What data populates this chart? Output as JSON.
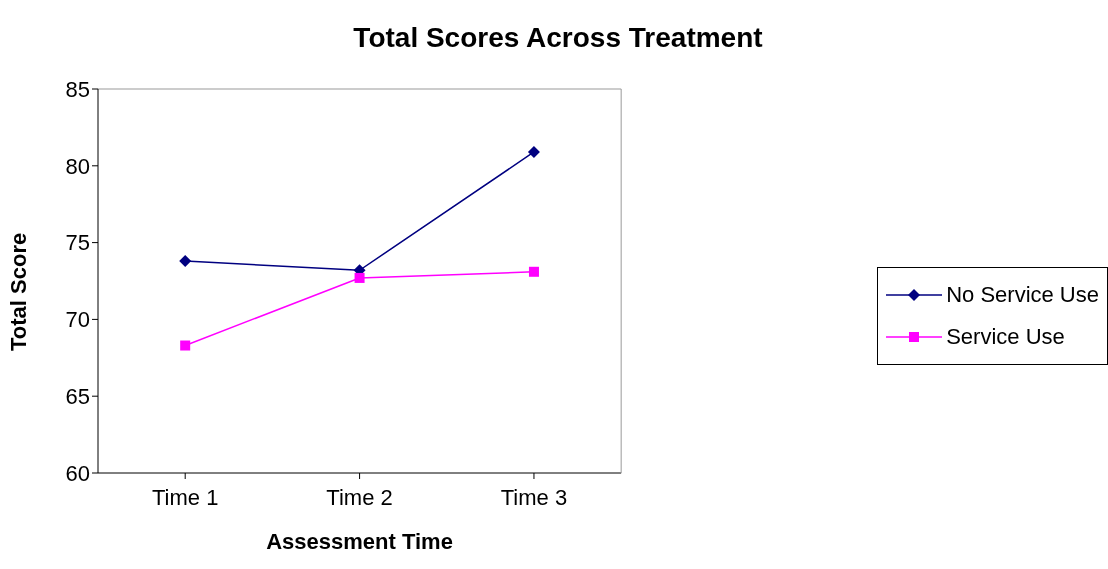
{
  "chart_data": {
    "type": "line",
    "title": "Total Scores Across Treatment",
    "xlabel": "Assessment Time",
    "ylabel": "Total Score",
    "categories": [
      "Time 1",
      "Time 2",
      "Time 3"
    ],
    "series": [
      {
        "name": "No Service Use",
        "color": "#000080",
        "marker": "diamond",
        "values": [
          73.8,
          73.2,
          80.9
        ]
      },
      {
        "name": "Service Use",
        "color": "#ff00ff",
        "marker": "square",
        "values": [
          68.3,
          72.7,
          73.1
        ]
      }
    ],
    "ylim": [
      60,
      85
    ],
    "yticks": [
      60,
      65,
      70,
      75,
      80,
      85
    ],
    "grid": false,
    "legend": "right",
    "line_style": "solid"
  }
}
